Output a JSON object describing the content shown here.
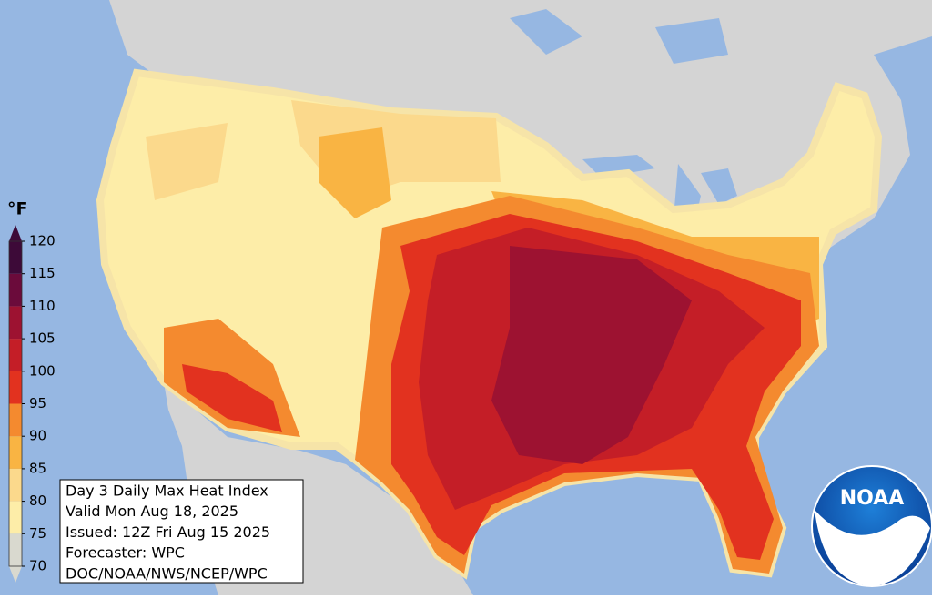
{
  "legend": {
    "unit": "°F",
    "ticks": [
      70,
      75,
      80,
      85,
      90,
      95,
      100,
      105,
      110,
      115,
      120
    ],
    "colors": [
      "#d9d9cf",
      "#fdeda8",
      "#fbd98c",
      "#f9b443",
      "#f48a2f",
      "#e2321f",
      "#c41e27",
      "#9d1231",
      "#6b0b3b",
      "#3d0a38"
    ]
  },
  "info": {
    "lines": [
      "Day 3 Daily Max Heat Index",
      "Valid Mon Aug 18, 2025",
      "Issued: 12Z Fri Aug 15 2025",
      "Forecaster: WPC",
      "DOC/NOAA/NWS/NCEP/WPC"
    ]
  },
  "logo": {
    "text": "NOAA"
  }
}
